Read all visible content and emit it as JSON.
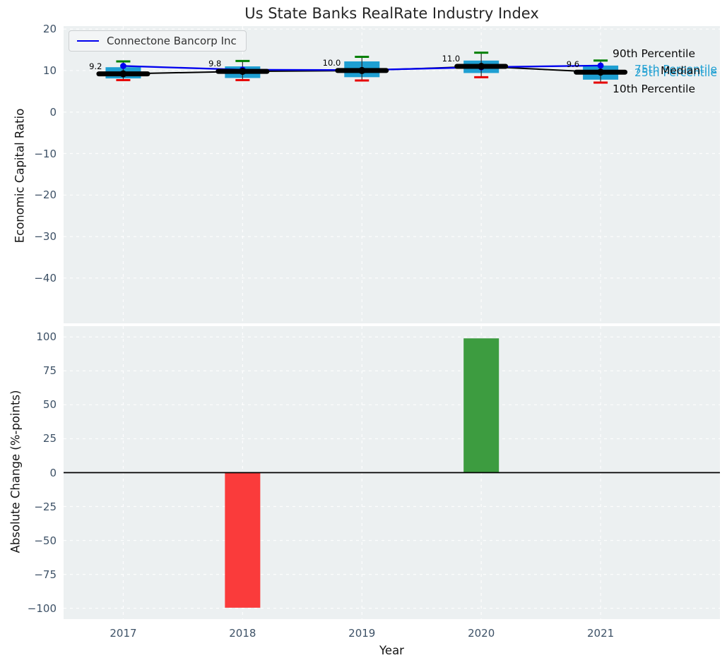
{
  "title": "Us State Banks RealRate Industry Index",
  "colors": {
    "box_fill": "#1e9fd2",
    "whisker_line": "#2b2b2b",
    "whisker_cap_high": "#008000",
    "whisker_cap_low": "#e60000",
    "median_color": "#000000",
    "company_line": "#0000ee",
    "bar_positive": "#3d9c40",
    "bar_negative": "#fa3b3b",
    "axes_background": "#ecf0f1",
    "grid": "#ffffff",
    "tick_label": "#3d5166"
  },
  "chart_data": [
    {
      "type": "boxplot",
      "title": "Us State Banks RealRate Industry Index",
      "ylabel": "Economic Capital Ratio",
      "legend_label": "Connectone Bancorp Inc",
      "legend_position": "upper left",
      "grid": true,
      "x": [
        2017,
        2018,
        2019,
        2020,
        2021
      ],
      "xlim": [
        2016.5,
        2022.0
      ],
      "ylim": [
        -50.9,
        20.7
      ],
      "yticks": [
        20,
        10,
        0,
        -10,
        -20,
        -30,
        -40
      ],
      "boxes": [
        {
          "year": 2017,
          "p90": 12.2,
          "q3": 10.8,
          "median": 9.2,
          "q1": 8.1,
          "p10": 7.7
        },
        {
          "year": 2018,
          "p90": 12.3,
          "q3": 11.0,
          "median": 9.8,
          "q1": 8.2,
          "p10": 7.7
        },
        {
          "year": 2019,
          "p90": 13.3,
          "q3": 12.2,
          "median": 10.0,
          "q1": 8.4,
          "p10": 7.6
        },
        {
          "year": 2020,
          "p90": 14.3,
          "q3": 12.4,
          "median": 11.0,
          "q1": 9.4,
          "p10": 8.4
        },
        {
          "year": 2021,
          "p90": 12.4,
          "q3": 11.2,
          "median": 9.6,
          "q1": 7.8,
          "p10": 7.1
        }
      ],
      "median_labels": [
        "9.2",
        "9.8",
        "10.0",
        "11.0",
        "9.6"
      ],
      "series": [
        {
          "name": "Connectone Bancorp Inc",
          "values": [
            11.1,
            10.2,
            10.1,
            10.8,
            11.2
          ]
        },
        {
          "name": "Median",
          "values": [
            9.2,
            9.8,
            10.0,
            11.0,
            9.6
          ]
        }
      ],
      "annotations": [
        {
          "role": "p75",
          "text": "75th Percentile",
          "color": "cyan"
        },
        {
          "role": "p25",
          "text": "25th Percentile",
          "color": "cyan"
        },
        {
          "role": "p90",
          "text": "90th Percentile",
          "color": "black"
        },
        {
          "role": "median",
          "text": "Median",
          "color": "black"
        },
        {
          "role": "p10",
          "text": "10th Percentile",
          "color": "black"
        }
      ]
    },
    {
      "type": "bar",
      "ylabel": "Absolute Change (%-points)",
      "xlabel": "Year",
      "categories": [
        "2017",
        "2018",
        "2019",
        "2020",
        "2021"
      ],
      "x": [
        2017,
        2018,
        2019,
        2020,
        2021
      ],
      "values": [
        0,
        -99.6,
        0,
        99.0,
        0
      ],
      "xlim": [
        2016.5,
        2022.0
      ],
      "ylim": [
        -108,
        108
      ],
      "yticks": [
        100,
        75,
        50,
        25,
        0,
        -25,
        -50,
        -75,
        -100
      ],
      "grid": true,
      "zero_line": true
    }
  ]
}
